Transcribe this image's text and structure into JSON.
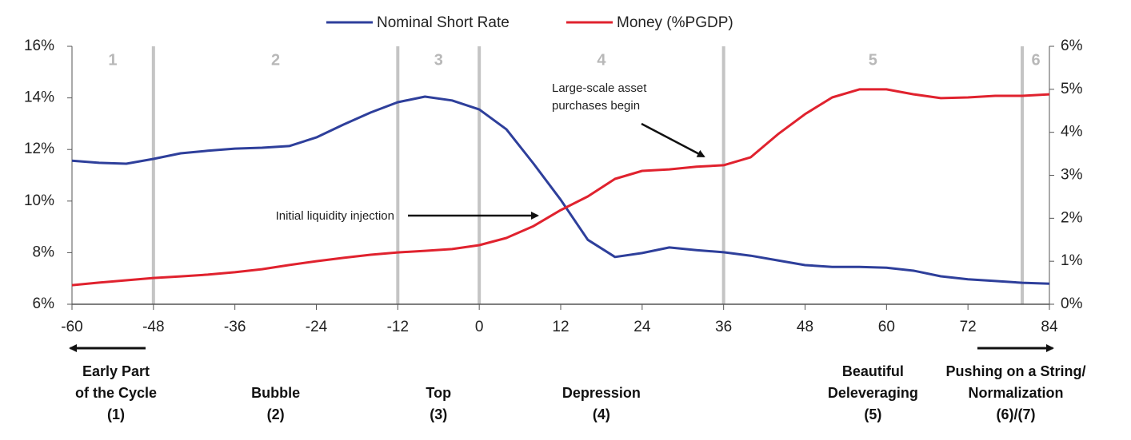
{
  "chart_data": {
    "type": "line",
    "x": [
      -60,
      -56,
      -52,
      -48,
      -44,
      -40,
      -36,
      -32,
      -28,
      -24,
      -20,
      -16,
      -12,
      -8,
      -4,
      0,
      4,
      8,
      12,
      16,
      20,
      24,
      28,
      32,
      36,
      40,
      44,
      48,
      52,
      56,
      60,
      64,
      68,
      72,
      76,
      80,
      84
    ],
    "series": [
      {
        "name": "Nominal Short Rate",
        "color": "#2e3f9b",
        "axis": "y2",
        "values": [
          3.34,
          3.29,
          3.27,
          3.38,
          3.51,
          3.57,
          3.62,
          3.64,
          3.68,
          3.88,
          4.18,
          4.46,
          4.7,
          4.83,
          4.74,
          4.53,
          4.07,
          3.27,
          2.43,
          1.5,
          1.1,
          1.19,
          1.32,
          1.26,
          1.21,
          1.13,
          1.02,
          0.91,
          0.87,
          0.87,
          0.85,
          0.78,
          0.65,
          0.58,
          0.54,
          0.5,
          0.48
        ]
      },
      {
        "name": "Money (%PGDP)",
        "color": "#e0222e",
        "values": [
          6.74,
          6.84,
          6.93,
          7.02,
          7.08,
          7.15,
          7.24,
          7.36,
          7.52,
          7.67,
          7.8,
          7.92,
          8.01,
          8.07,
          8.14,
          8.29,
          8.57,
          9.03,
          9.65,
          10.18,
          10.86,
          11.17,
          11.23,
          11.33,
          11.39,
          11.7,
          12.59,
          13.37,
          14.02,
          14.33,
          14.33,
          14.14,
          13.99,
          14.02,
          14.08,
          14.08,
          14.14
        ]
      }
    ],
    "xlim": [
      -60,
      84
    ],
    "xticks": [
      -60,
      -48,
      -36,
      -24,
      -12,
      0,
      12,
      24,
      36,
      48,
      60,
      72,
      84
    ],
    "ylim": [
      6,
      16
    ],
    "yticks": [
      {
        "value": 6,
        "label": "6%"
      },
      {
        "value": 8,
        "label": "8%"
      },
      {
        "value": 10,
        "label": "10%"
      },
      {
        "value": 12,
        "label": "12%"
      },
      {
        "value": 14,
        "label": "14%"
      },
      {
        "value": 16,
        "label": "16%"
      }
    ],
    "y2lim": [
      0,
      6
    ],
    "y2ticks": [
      {
        "value": 0,
        "label": "0%"
      },
      {
        "value": 1,
        "label": "1%"
      },
      {
        "value": 2,
        "label": "2%"
      },
      {
        "value": 3,
        "label": "3%"
      },
      {
        "value": 4,
        "label": "4%"
      },
      {
        "value": 5,
        "label": "5%"
      },
      {
        "value": 6,
        "label": "6%"
      }
    ],
    "phase_dividers": [
      -48,
      -12,
      0,
      36,
      80
    ],
    "phases": [
      {
        "label": "1",
        "description": [
          "Early Part",
          "of the Cycle",
          "(1)"
        ]
      },
      {
        "label": "2",
        "description": [
          "Bubble",
          "(2)"
        ]
      },
      {
        "label": "3",
        "description": [
          "Top",
          "(3)"
        ]
      },
      {
        "label": "4",
        "description": [
          "Depression",
          "(4)"
        ]
      },
      {
        "label": "5",
        "description": [
          "Beautiful",
          "Deleveraging",
          "(5)"
        ]
      },
      {
        "label": "6",
        "description": [
          "Pushing on a String/",
          "Normalization",
          "(6)/(7)"
        ]
      }
    ],
    "annotations": [
      {
        "lines": [
          "Initial liquidity injection"
        ]
      },
      {
        "lines": [
          "Large-scale asset",
          "purchases begin"
        ]
      }
    ]
  }
}
